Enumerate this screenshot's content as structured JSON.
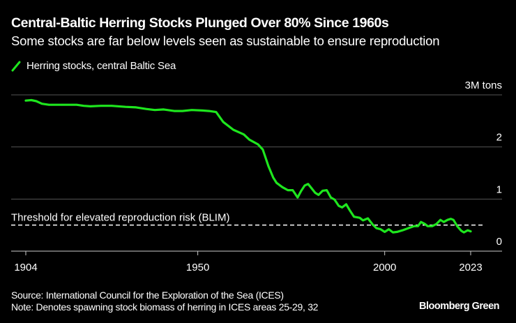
{
  "header": {
    "title": "Central-Baltic Herring Stocks Plunged Over 80% Since 1960s",
    "subtitle": "Some stocks are far below levels seen as sustainable to ensure reproduction"
  },
  "footer": {
    "source": "Source: International Council for the Exploration of the Sea (ICES)",
    "note": "Note: Denotes spawning stock biomass of herring in ICES areas 25-29, 32",
    "brand": "Bloomberg Green"
  },
  "colors": {
    "background": "#000000",
    "series": "#1ee61e",
    "gridline": "#555555",
    "axis": "#cccccc",
    "threshold": "#ffffff"
  },
  "chart_data": {
    "type": "line",
    "title": "Central-Baltic Herring Stocks Plunged Over 80% Since 1960s",
    "subtitle": "Some stocks are far below levels seen as sustainable to ensure reproduction",
    "xlabel": "",
    "ylabel": "Million tons",
    "xlim": [
      1904,
      2023
    ],
    "ylim": [
      0,
      3
    ],
    "x_ticks": [
      1904,
      1950,
      2000,
      2023
    ],
    "x_tick_labels": [
      "1904",
      "1950",
      "2000",
      "2023"
    ],
    "y_ticks": [
      0,
      1,
      2,
      3
    ],
    "y_tick_labels": [
      "0",
      "1",
      "2",
      "3M tons"
    ],
    "y_axis_side": "right",
    "grid": true,
    "legend": {
      "placement": "top-left",
      "entries": [
        "Herring stocks, central Baltic Sea"
      ]
    },
    "annotations": [
      {
        "type": "hline",
        "y": 0.5,
        "style": "dashed",
        "label": "Threshold for elevated reproduction risk (BLIM)"
      }
    ],
    "series": [
      {
        "name": "Herring stocks, central Baltic Sea",
        "x": [
          1904,
          1905.5,
          1906.8,
          1908.3,
          1910.2,
          1913.9,
          1917.6,
          1919.5,
          1921.3,
          1924.1,
          1927,
          1930.7,
          1933.5,
          1936.2,
          1938.5,
          1940.9,
          1943.7,
          1945.9,
          1948.4,
          1951.2,
          1953,
          1954.9,
          1956.8,
          1959.5,
          1962.3,
          1963.8,
          1966.1,
          1967.4,
          1968.9,
          1970.2,
          1971.1,
          1972.6,
          1974.1,
          1975.4,
          1976.7,
          1977.6,
          1978.6,
          1979.5,
          1980.2,
          1981.4,
          1982.3,
          1983.4,
          1984.5,
          1985.6,
          1986.6,
          1987.7,
          1988.6,
          1989.7,
          1990.7,
          1991.8,
          1993.3,
          1994.2,
          1995.5,
          1996.8,
          1997.8,
          1998.9,
          2000,
          2001.1,
          2002.2,
          2003.3,
          2004.8,
          2006.3,
          2007.8,
          2008.9,
          2009.7,
          2010.8,
          2011.5,
          2012.7,
          2013.8,
          2014.9,
          2015.8,
          2016.8,
          2017.7,
          2018.4,
          2019.4,
          2020.5,
          2021.2,
          2022.2,
          2023
        ],
        "values": [
          2.89,
          2.9,
          2.88,
          2.83,
          2.81,
          2.81,
          2.81,
          2.79,
          2.78,
          2.79,
          2.79,
          2.77,
          2.76,
          2.73,
          2.71,
          2.72,
          2.69,
          2.69,
          2.71,
          2.7,
          2.69,
          2.67,
          2.48,
          2.33,
          2.24,
          2.14,
          2.05,
          1.95,
          1.63,
          1.41,
          1.31,
          1.23,
          1.17,
          1.17,
          1.03,
          1.15,
          1.26,
          1.29,
          1.23,
          1.12,
          1.08,
          1.16,
          1.17,
          1.03,
          0.99,
          0.87,
          0.84,
          0.9,
          0.78,
          0.66,
          0.64,
          0.59,
          0.63,
          0.51,
          0.44,
          0.42,
          0.37,
          0.42,
          0.36,
          0.37,
          0.4,
          0.44,
          0.48,
          0.48,
          0.56,
          0.52,
          0.48,
          0.48,
          0.52,
          0.6,
          0.56,
          0.6,
          0.62,
          0.6,
          0.48,
          0.39,
          0.36,
          0.4,
          0.38
        ]
      }
    ]
  }
}
